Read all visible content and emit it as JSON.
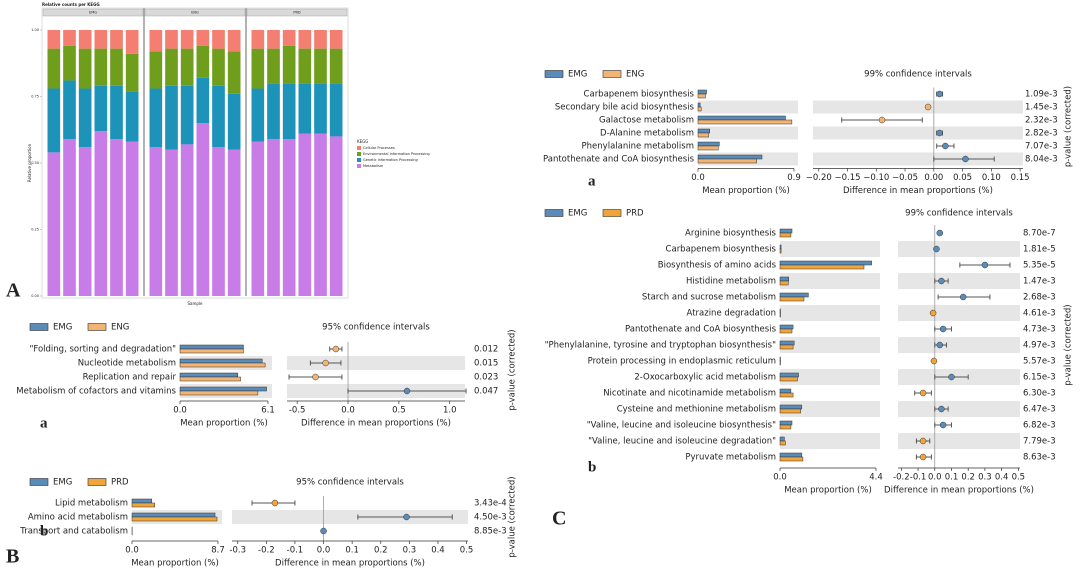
{
  "figure_labels": [
    "A",
    "B",
    "C"
  ],
  "chart_data": [
    {
      "type": "stacked_bar",
      "title": "Relative counts per KEGG",
      "ylabel": "Relative proportion",
      "xlabel": "Sample",
      "legend_title": "KEGG",
      "facets": [
        "EMG",
        "ENG",
        "PRD"
      ],
      "ylim": [
        0,
        1
      ],
      "yticks": [
        {
          "value": 0,
          "label": "0.00"
        },
        0.25,
        {
          "value": 0.5,
          "label": "0.50"
        },
        0.75,
        {
          "value": 1,
          "label": "1.00"
        }
      ],
      "series": [
        {
          "name": "Metabolism",
          "color": "#c77ce8",
          "values": [
            0.54,
            0.59,
            0.56,
            0.62,
            0.59,
            0.58,
            0.56,
            0.55,
            0.57,
            0.65,
            0.56,
            0.55,
            0.58,
            0.59,
            0.59,
            0.61,
            0.61,
            0.6
          ]
        },
        {
          "name": "Genetic Information Processing",
          "color": "#1d93b9",
          "values": [
            0.24,
            0.22,
            0.22,
            0.17,
            0.2,
            0.19,
            0.22,
            0.24,
            0.22,
            0.17,
            0.23,
            0.21,
            0.2,
            0.21,
            0.21,
            0.19,
            0.19,
            0.2
          ]
        },
        {
          "name": "Environmental Information Processing",
          "color": "#6f9e1d",
          "values": [
            0.15,
            0.13,
            0.15,
            0.14,
            0.14,
            0.14,
            0.14,
            0.14,
            0.14,
            0.12,
            0.14,
            0.16,
            0.15,
            0.13,
            0.14,
            0.13,
            0.13,
            0.13
          ]
        },
        {
          "name": "Cellular Processes",
          "color": "#f47e72",
          "values": [
            0.07,
            0.06,
            0.07,
            0.07,
            0.07,
            0.09,
            0.08,
            0.07,
            0.07,
            0.06,
            0.07,
            0.08,
            0.07,
            0.07,
            0.06,
            0.07,
            0.07,
            0.07
          ]
        }
      ]
    },
    {
      "type": "extended_error_bar",
      "panel": "a",
      "ci_title": "95% confidence intervals",
      "p_label": "p-value (corrected)",
      "categories": [
        "\"Folding, sorting and degradation\"",
        "Nucleotide metabolism",
        "Replication and repair",
        "Metabolism of cofactors and vitamins"
      ],
      "series": [
        {
          "name": "EMG",
          "color": "#5b8cb8",
          "values": [
            4.4,
            5.7,
            4.0,
            6.0
          ]
        },
        {
          "name": "ENG",
          "color": "#f2b373",
          "values": [
            4.4,
            5.9,
            4.2,
            5.4
          ]
        }
      ],
      "xlim": [
        0,
        6.1
      ],
      "xticks": [
        {
          "value": 0,
          "label": "0.0"
        },
        6.1
      ],
      "xlabel": "Mean proportion (%)",
      "diff": {
        "values": [
          -0.12,
          -0.22,
          -0.32,
          0.58
        ],
        "ci_low": [
          -0.18,
          -0.37,
          -0.58,
          0.0
        ],
        "ci_high": [
          -0.06,
          -0.07,
          -0.06,
          1.16
        ],
        "xlim": [
          -0.6,
          1.15
        ],
        "xticks": [
          -0.5,
          {
            "value": 0,
            "label": "0.0"
          },
          0.5,
          {
            "value": 1,
            "label": "1.0"
          }
        ],
        "xlabel": "Difference in mean proportions (%)"
      },
      "p_values": [
        0.012,
        0.015,
        0.023,
        0.047
      ]
    },
    {
      "type": "extended_error_bar",
      "panel": "b",
      "ci_title": "95% confidence intervals",
      "p_label": "p-value (corrected)",
      "categories": [
        "Lipid metabolism",
        "Amino acid metabolism",
        "Transport and catabolism"
      ],
      "series": [
        {
          "name": "EMG",
          "color": "#5b8cb8",
          "values": [
            2.0,
            8.4,
            0.02
          ]
        },
        {
          "name": "PRD",
          "color": "#f0a43a",
          "values": [
            2.3,
            8.6,
            0.02
          ]
        }
      ],
      "xlim": [
        0,
        8.7
      ],
      "xticks": [
        {
          "value": 0,
          "label": "0.0"
        },
        8.7
      ],
      "xlabel": "Mean proportion (%)",
      "diff": {
        "values": [
          -0.17,
          0.29,
          0.0
        ],
        "ci_low": [
          -0.25,
          0.12,
          -0.004
        ],
        "ci_high": [
          -0.1,
          0.45,
          0.004
        ],
        "xlim": [
          -0.32,
          0.505
        ],
        "xticks": [
          -0.3,
          -0.2,
          -0.1,
          {
            "value": 0,
            "label": "0.0"
          },
          0.1,
          0.2,
          0.3,
          0.4,
          0.5
        ],
        "xlabel": "Difference in mean proportions (%)"
      },
      "p_values": [
        0.000343,
        0.0045,
        0.00885
      ],
      "p_value_labels": [
        "3.43e-4",
        "4.50e-3",
        "8.85e-3"
      ]
    },
    {
      "type": "extended_error_bar",
      "panel": "a",
      "ci_title": "99% confidence intervals",
      "p_label": "p-value (corrected)",
      "categories": [
        "Carbapenem biosynthesis",
        "Secondary bile acid biosynthesis",
        "Galactose metabolism",
        "D-Alanine metabolism",
        "Phenylalanine metabolism",
        "Pantothenate and CoA biosynthesis"
      ],
      "series": [
        {
          "name": "EMG",
          "color": "#5b8cb8",
          "values": [
            0.08,
            0.02,
            0.82,
            0.11,
            0.2,
            0.6
          ]
        },
        {
          "name": "ENG",
          "color": "#f2b373",
          "values": [
            0.07,
            0.03,
            0.88,
            0.1,
            0.19,
            0.55
          ]
        }
      ],
      "xlim": [
        0,
        0.9
      ],
      "xticks": [
        {
          "value": 0,
          "label": "0.0"
        },
        0.9
      ],
      "xlabel": "Mean proportion (%)",
      "diff": {
        "values": [
          0.01,
          -0.01,
          -0.09,
          0.01,
          0.02,
          0.055
        ],
        "ci_low": [
          0.005,
          -0.013,
          -0.16,
          0.005,
          0.005,
          0.0
        ],
        "ci_high": [
          0.015,
          -0.007,
          -0.02,
          0.015,
          0.035,
          0.105
        ],
        "xlim": [
          -0.21,
          0.155
        ],
        "xticks": [
          {
            "value": -0.2,
            "label": "−0.20"
          },
          {
            "value": -0.15,
            "label": "−0.15"
          },
          {
            "value": -0.1,
            "label": "−0.10"
          },
          {
            "value": -0.05,
            "label": "−0.05"
          },
          {
            "value": 0,
            "label": "0.00"
          },
          0.05,
          {
            "value": 0.1,
            "label": "0.10"
          },
          0.15
        ],
        "xlabel": "Difference in mean proportions (%)"
      },
      "p_values": [
        0.00109,
        0.00145,
        0.00232,
        0.00282,
        0.00707,
        0.00804
      ],
      "p_value_labels": [
        "1.09e-3",
        "1.45e-3",
        "2.32e-3",
        "2.82e-3",
        "7.07e-3",
        "8.04e-3"
      ]
    },
    {
      "type": "extended_error_bar",
      "panel": "b",
      "ci_title": "99% confidence intervals",
      "p_label": "p-value (corrected)",
      "categories": [
        "Arginine biosynthesis",
        "Carbapenem biosynthesis",
        "Biosynthesis of amino acids",
        "Histidine metabolism",
        "Starch and sucrose metabolism",
        "Atrazine degradation",
        "Pantothenate and CoA biosynthesis",
        "\"Phenylalanine, tyrosine and tryptophan biosynthesis\"",
        "Protein processing in endoplasmic reticulum",
        "2-Oxocarboxylic acid metabolism",
        "Nicotinate and nicotinamide metabolism",
        "Cysteine and methionine metabolism",
        "\"Valine, leucine and isoleucine biosynthesis\"",
        "\"Valine, leucine and isoleucine degradation\"",
        "Pyruvate metabolism"
      ],
      "series": [
        {
          "name": "EMG",
          "color": "#5b8cb8",
          "values": [
            0.55,
            0.05,
            4.2,
            0.4,
            1.3,
            0.02,
            0.6,
            0.65,
            0.02,
            0.85,
            0.5,
            1.0,
            0.55,
            0.2,
            1.0
          ]
        },
        {
          "name": "PRD",
          "color": "#f0a43a",
          "values": [
            0.5,
            0.05,
            3.85,
            0.38,
            1.1,
            0.02,
            0.55,
            0.6,
            0.02,
            0.8,
            0.6,
            0.95,
            0.5,
            0.25,
            1.05
          ]
        }
      ],
      "xlim": [
        0,
        4.4
      ],
      "xticks": [
        {
          "value": 0,
          "label": "0.0"
        },
        4.4
      ],
      "xlabel": "Mean proportion (%)",
      "diff": {
        "values": [
          0.03,
          0.01,
          0.3,
          0.04,
          0.17,
          -0.01,
          0.05,
          0.03,
          -0.005,
          0.1,
          -0.07,
          0.04,
          0.05,
          -0.07,
          -0.07
        ],
        "ci_low": [
          0.02,
          0.005,
          0.15,
          0.0,
          0.02,
          -0.013,
          0.0,
          0.0,
          -0.008,
          0.0,
          -0.12,
          0.0,
          0.0,
          -0.11,
          -0.11
        ],
        "ci_high": [
          0.04,
          0.015,
          0.45,
          0.08,
          0.33,
          -0.007,
          0.1,
          0.07,
          -0.002,
          0.2,
          -0.02,
          0.08,
          0.1,
          -0.03,
          -0.02
        ],
        "xlim": [
          -0.22,
          0.51
        ],
        "xticks": [
          -0.2,
          -0.1,
          {
            "value": 0,
            "label": "0.0"
          },
          0.1,
          0.2,
          0.3,
          0.4,
          0.5
        ],
        "xlabel": "Difference in mean proportions (%)"
      },
      "p_values": [
        8.7e-07,
        1.81e-05,
        5.35e-05,
        0.00147,
        0.00268,
        0.00461,
        0.00473,
        0.00497,
        0.00557,
        0.00615,
        0.0063,
        0.00647,
        0.00682,
        0.00779,
        0.00863
      ],
      "p_value_labels": [
        "8.70e-7",
        "1.81e-5",
        "5.35e-5",
        "1.47e-3",
        "2.68e-3",
        "4.61e-3",
        "4.73e-3",
        "4.97e-3",
        "5.57e-3",
        "6.15e-3",
        "6.30e-3",
        "6.47e-3",
        "6.82e-3",
        "7.79e-3",
        "8.63e-3"
      ]
    }
  ]
}
